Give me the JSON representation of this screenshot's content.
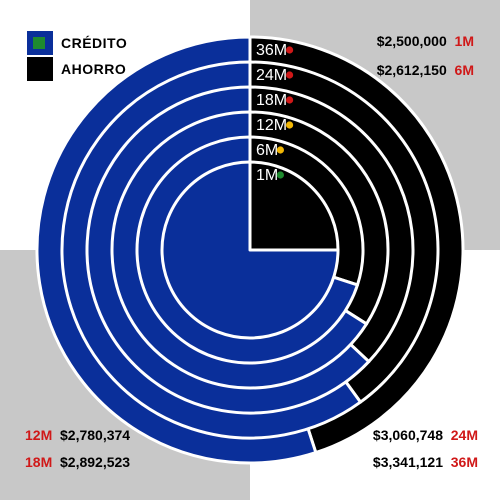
{
  "legend": {
    "credito_label": "CRÉDITO",
    "ahorro_label": "AHORRO"
  },
  "colors": {
    "credito": "#0a2f9a",
    "ahorro": "#000000",
    "term_text": "#d01818",
    "quad_grey": "#c8c8c8",
    "status_green": "#1e8a2e",
    "status_yellow": "#f2b705",
    "status_red": "#d01818"
  },
  "annotations": {
    "m1": {
      "amount": "$2,500,000",
      "term": "1M"
    },
    "m6": {
      "amount": "$2,612,150",
      "term": "6M"
    },
    "m12": {
      "term": "12M",
      "amount": "$2,780,374"
    },
    "m18": {
      "term": "18M",
      "amount": "$2,892,523"
    },
    "m24": {
      "amount": "$3,060,748",
      "term": "24M"
    },
    "m36": {
      "amount": "$3,341,121",
      "term": "36M"
    }
  },
  "chart_data": {
    "type": "pie",
    "series_order": [
      "CRÉDITO",
      "AHORRO"
    ],
    "rings": [
      {
        "label": "1M",
        "status": "green",
        "ahorro_pct": 25.0
      },
      {
        "label": "6M",
        "status": "yellow",
        "ahorro_pct": 30.0
      },
      {
        "label": "12M",
        "status": "yellow",
        "ahorro_pct": 34.0
      },
      {
        "label": "18M",
        "status": "red",
        "ahorro_pct": 37.0
      },
      {
        "label": "24M",
        "status": "red",
        "ahorro_pct": 40.0
      },
      {
        "label": "36M",
        "status": "red",
        "ahorro_pct": 45.0
      }
    ]
  }
}
